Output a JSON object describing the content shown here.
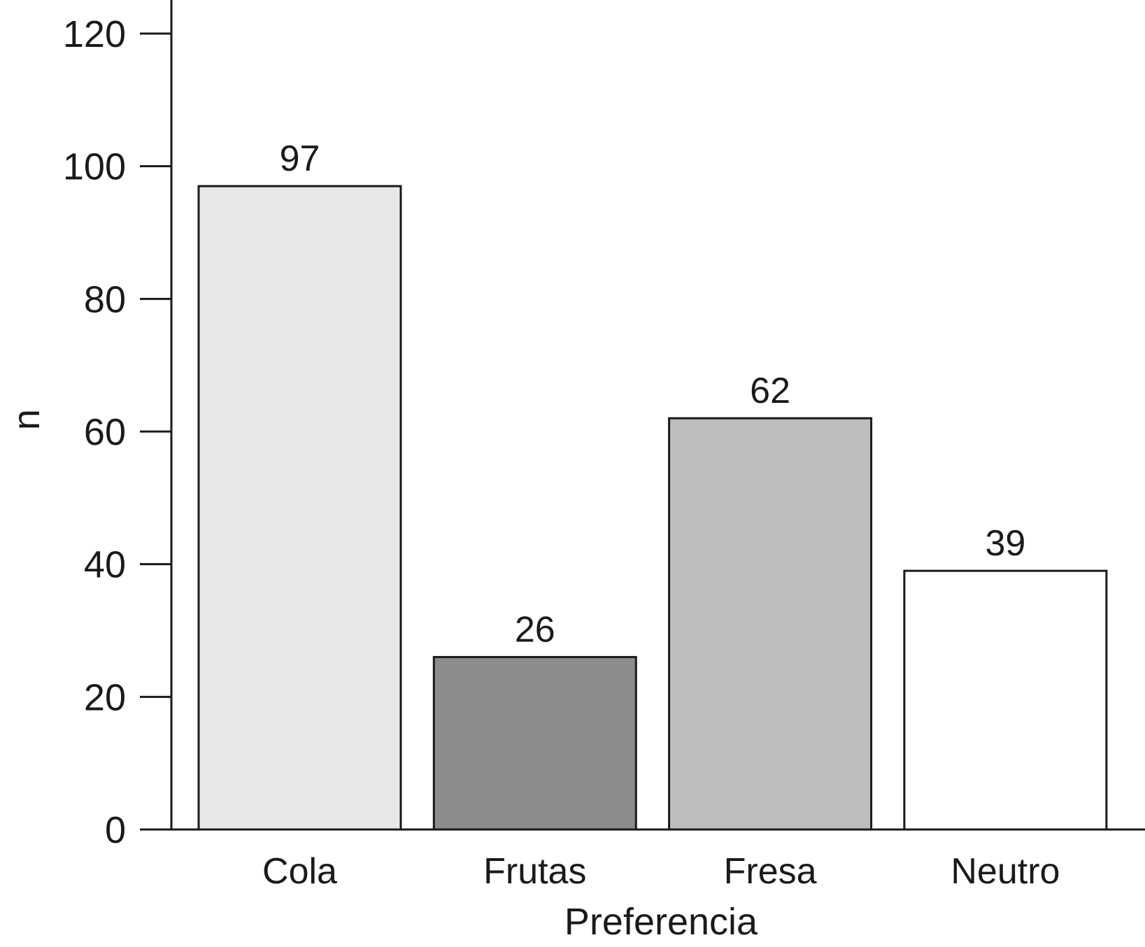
{
  "chart_data": {
    "type": "bar",
    "categories": [
      "Cola",
      "Frutas",
      "Fresa",
      "Neutro"
    ],
    "values": [
      97,
      26,
      62,
      39
    ],
    "data_labels": [
      "97",
      "26",
      "62",
      "39"
    ],
    "colors": [
      "#e8e8e8",
      "#8c8c8c",
      "#bdbdbd",
      "#ffffff"
    ],
    "title": "",
    "xlabel": "Preferencia",
    "ylabel": "n",
    "ylim": [
      0,
      120
    ],
    "yticks": [
      0,
      20,
      40,
      60,
      80,
      100,
      120
    ],
    "ytick_labels": [
      "0",
      "20",
      "40",
      "60",
      "80",
      "100",
      "120"
    ],
    "grid": false,
    "legend": "none"
  }
}
